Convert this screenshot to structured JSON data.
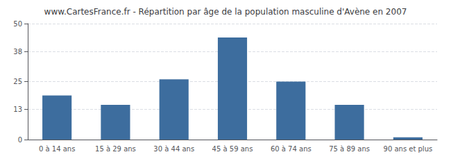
{
  "chart_data": {
    "type": "bar",
    "title": "www.CartesFrance.fr - Répartition par âge de la population masculine d'Avène en 2007",
    "categories": [
      "0 à 14 ans",
      "15 à 29 ans",
      "30 à 44 ans",
      "45 à 59 ans",
      "60 à 74 ans",
      "75 à 89 ans",
      "90 ans et plus"
    ],
    "values": [
      19,
      15,
      26,
      44,
      25,
      15,
      1
    ],
    "color": "#3d6d9e",
    "ylim": [
      0,
      50
    ],
    "yticks": [
      0,
      13,
      25,
      38,
      50
    ],
    "grid": true
  }
}
